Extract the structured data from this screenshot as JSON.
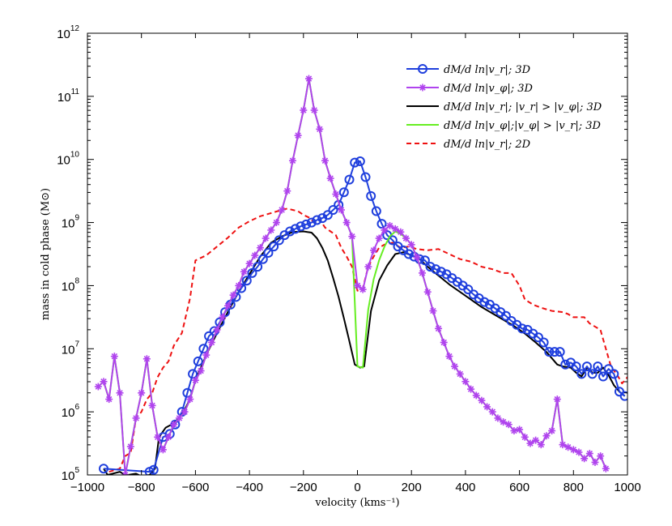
{
  "chart_data": {
    "type": "line",
    "xlabel": "velocity (kms⁻¹)",
    "ylabel": "mass in cold phase (M⊙)",
    "xlim": [
      -1000,
      1000
    ],
    "ylim_log10": [
      5,
      12
    ],
    "y_scale": "log",
    "x_ticks": [
      "−1000",
      "−800",
      "−600",
      "−400",
      "−200",
      "0",
      "200",
      "400",
      "600",
      "800",
      "1000"
    ],
    "y_ticks": [
      {
        "base": "10",
        "exp": "5"
      },
      {
        "base": "10",
        "exp": "6"
      },
      {
        "base": "10",
        "exp": "7"
      },
      {
        "base": "10",
        "exp": "8"
      },
      {
        "base": "10",
        "exp": "9"
      },
      {
        "base": "10",
        "exp": "10"
      },
      {
        "base": "10",
        "exp": "11"
      },
      {
        "base": "10",
        "exp": "12"
      }
    ],
    "legend_position": "top-right",
    "series": [
      {
        "name": "dM/d ln|v_r|; 3D",
        "color": "#1f3fdd",
        "line": "solid",
        "marker": "circle",
        "x": [
          -940,
          -770,
          -755,
          -720,
          -695,
          -675,
          -650,
          -630,
          -610,
          -590,
          -570,
          -550,
          -530,
          -510,
          -490,
          -470,
          -450,
          -430,
          -410,
          -390,
          -370,
          -350,
          -330,
          -310,
          -290,
          -270,
          -250,
          -230,
          -210,
          -190,
          -170,
          -150,
          -130,
          -110,
          -90,
          -70,
          -50,
          -30,
          -10,
          10,
          30,
          50,
          70,
          90,
          110,
          130,
          150,
          170,
          190,
          210,
          230,
          250,
          270,
          290,
          310,
          330,
          350,
          370,
          390,
          410,
          430,
          450,
          470,
          490,
          510,
          530,
          550,
          570,
          590,
          610,
          630,
          650,
          670,
          690,
          710,
          730,
          750,
          770,
          790,
          810,
          830,
          850,
          870,
          890,
          910,
          930,
          950,
          970,
          990
        ],
        "y_log10": [
          5.1,
          5.05,
          5.08,
          5.6,
          5.65,
          5.8,
          6.0,
          6.3,
          6.6,
          6.8,
          7.0,
          7.2,
          7.28,
          7.42,
          7.58,
          7.7,
          7.82,
          7.96,
          8.08,
          8.2,
          8.3,
          8.42,
          8.52,
          8.62,
          8.72,
          8.8,
          8.86,
          8.9,
          8.94,
          8.97,
          9.0,
          9.04,
          9.07,
          9.12,
          9.2,
          9.28,
          9.48,
          9.68,
          9.95,
          9.97,
          9.72,
          9.42,
          9.18,
          8.98,
          8.8,
          8.72,
          8.62,
          8.56,
          8.5,
          8.46,
          8.42,
          8.4,
          8.3,
          8.26,
          8.22,
          8.18,
          8.12,
          8.06,
          8.0,
          7.94,
          7.86,
          7.8,
          7.74,
          7.7,
          7.64,
          7.58,
          7.52,
          7.44,
          7.38,
          7.32,
          7.3,
          7.24,
          7.18,
          7.1,
          6.95,
          6.95,
          6.95,
          6.75,
          6.78,
          6.72,
          6.6,
          6.72,
          6.6,
          6.72,
          6.56,
          6.68,
          6.6,
          6.32,
          6.25
        ]
      },
      {
        "name": "dM/d ln|v_φ|; 3D",
        "color": "#b044ee",
        "line": "solid",
        "marker": "asterisk",
        "x": [
          -960,
          -940,
          -920,
          -900,
          -880,
          -860,
          -840,
          -820,
          -800,
          -780,
          -760,
          -740,
          -720,
          -700,
          -680,
          -660,
          -640,
          -620,
          -600,
          -580,
          -560,
          -540,
          -520,
          -500,
          -480,
          -460,
          -440,
          -420,
          -400,
          -380,
          -360,
          -340,
          -320,
          -300,
          -280,
          -260,
          -240,
          -220,
          -200,
          -180,
          -160,
          -140,
          -120,
          -100,
          -80,
          -60,
          -40,
          -20,
          0,
          20,
          40,
          60,
          80,
          100,
          120,
          140,
          160,
          180,
          200,
          220,
          240,
          260,
          280,
          300,
          320,
          340,
          360,
          380,
          400,
          420,
          440,
          460,
          480,
          500,
          520,
          540,
          560,
          580,
          600,
          620,
          640,
          660,
          680,
          700,
          720,
          740,
          760,
          780,
          800,
          820,
          840,
          860,
          880,
          900,
          920
        ],
        "y_log10": [
          6.4,
          6.48,
          6.2,
          6.88,
          6.3,
          5.0,
          5.45,
          5.9,
          6.3,
          6.84,
          6.1,
          5.6,
          5.4,
          5.6,
          5.8,
          5.9,
          6.0,
          6.2,
          6.5,
          6.65,
          6.9,
          7.1,
          7.3,
          7.5,
          7.68,
          7.85,
          8.0,
          8.22,
          8.35,
          8.48,
          8.6,
          8.75,
          8.88,
          9.0,
          9.2,
          9.5,
          9.98,
          10.38,
          10.78,
          11.28,
          10.78,
          10.48,
          9.98,
          9.7,
          9.45,
          9.2,
          9.0,
          8.78,
          8.0,
          7.94,
          8.3,
          8.56,
          8.75,
          8.88,
          8.95,
          8.9,
          8.85,
          8.75,
          8.65,
          8.45,
          8.2,
          7.9,
          7.6,
          7.32,
          7.1,
          6.88,
          6.72,
          6.6,
          6.48,
          6.36,
          6.26,
          6.18,
          6.08,
          6.0,
          5.9,
          5.84,
          5.8,
          5.7,
          5.72,
          5.6,
          5.5,
          5.55,
          5.48,
          5.62,
          5.7,
          6.2,
          5.48,
          5.44,
          5.4,
          5.36,
          5.26,
          5.34,
          5.2,
          5.3,
          5.1
        ]
      },
      {
        "name": "dM/d ln|v_r|; |v_r| > |v_φ|; 3D",
        "color": "#000000",
        "line": "solid",
        "marker": "none",
        "x": [
          -940,
          -925,
          -880,
          -860,
          -850,
          -820,
          -800,
          -770,
          -750,
          -735,
          -710,
          -680,
          -650,
          -620,
          -600,
          -560,
          -520,
          -480,
          -440,
          -400,
          -360,
          -320,
          -280,
          -240,
          -200,
          -170,
          -150,
          -130,
          -110,
          -90,
          -70,
          -50,
          -30,
          -10,
          10,
          25,
          50,
          80,
          110,
          140,
          170,
          200,
          230,
          260,
          300,
          340,
          380,
          420,
          460,
          500,
          540,
          580,
          620,
          660,
          700,
          740,
          760,
          790,
          810,
          830,
          850,
          870,
          890,
          910,
          930,
          950,
          970,
          990
        ],
        "y_log10": [
          5.1,
          5.0,
          5.05,
          5.0,
          5.0,
          5.02,
          4.98,
          5.0,
          5.1,
          5.6,
          5.75,
          5.82,
          5.95,
          6.2,
          6.5,
          6.9,
          7.25,
          7.58,
          7.9,
          8.18,
          8.46,
          8.68,
          8.78,
          8.85,
          8.86,
          8.84,
          8.75,
          8.6,
          8.4,
          8.12,
          7.82,
          7.48,
          7.12,
          6.75,
          6.7,
          6.72,
          7.6,
          8.08,
          8.32,
          8.5,
          8.53,
          8.48,
          8.42,
          8.3,
          8.16,
          8.02,
          7.9,
          7.78,
          7.66,
          7.56,
          7.46,
          7.36,
          7.24,
          7.1,
          6.95,
          6.75,
          6.72,
          6.7,
          6.62,
          6.56,
          6.7,
          6.62,
          6.62,
          6.7,
          6.58,
          6.42,
          6.32,
          6.25
        ]
      },
      {
        "name": "dM/d ln|v_φ|;|v_φ| > |v_r|; 3D",
        "color": "#66ee22",
        "line": "solid",
        "marker": "none",
        "x": [
          -960,
          -940,
          -920,
          -900,
          -880,
          -860,
          -840,
          -820,
          -800,
          -780,
          -760,
          -740,
          -720,
          -700,
          -680,
          -660,
          -640,
          -620,
          -600,
          -580,
          -560,
          -540,
          -520,
          -500,
          -480,
          -460,
          -440,
          -420,
          -400,
          -380,
          -360,
          -340,
          -320,
          -300,
          -280,
          -260,
          -240,
          -220,
          -200,
          -180,
          -160,
          -140,
          -120,
          -100,
          -80,
          -60,
          -40,
          -20,
          0,
          20,
          40,
          60,
          80,
          100,
          120,
          140,
          160,
          180,
          200,
          220,
          240,
          260,
          280,
          300,
          320,
          340,
          360,
          380,
          400,
          420,
          440,
          460,
          480,
          500,
          520,
          540,
          560,
          580,
          600,
          620,
          640,
          660,
          680,
          700,
          720,
          740,
          760,
          780,
          800,
          820,
          840,
          860,
          880,
          900,
          920
        ],
        "y_log10": [
          6.4,
          6.48,
          6.2,
          6.88,
          6.3,
          5.0,
          5.45,
          5.9,
          6.3,
          6.84,
          6.1,
          5.6,
          5.4,
          5.6,
          5.8,
          5.9,
          6.0,
          6.2,
          6.5,
          6.65,
          6.9,
          7.1,
          7.3,
          7.5,
          7.68,
          7.85,
          8.0,
          8.22,
          8.35,
          8.48,
          8.6,
          8.75,
          8.88,
          9.0,
          9.2,
          9.5,
          9.98,
          10.38,
          10.78,
          11.28,
          10.78,
          10.48,
          9.98,
          9.7,
          9.45,
          9.2,
          9.0,
          8.78,
          6.72,
          6.7,
          7.62,
          8.1,
          8.4,
          8.62,
          8.78,
          8.86,
          8.82,
          8.75,
          8.65,
          8.45,
          8.2,
          7.9,
          7.6,
          7.32,
          7.1,
          6.88,
          6.72,
          6.6,
          6.48,
          6.36,
          6.26,
          6.18,
          6.08,
          6.0,
          5.9,
          5.84,
          5.8,
          5.7,
          5.72,
          5.6,
          5.5,
          5.55,
          5.48,
          5.62,
          5.7,
          6.2,
          5.48,
          5.44,
          5.4,
          5.36,
          5.26,
          5.34,
          5.2,
          5.3,
          5.1
        ]
      },
      {
        "name": "dM/d ln|v_r|; 2D",
        "color": "#ee1111",
        "line": "dashed",
        "marker": "none",
        "x": [
          -920,
          -880,
          -860,
          -840,
          -820,
          -800,
          -780,
          -760,
          -740,
          -720,
          -700,
          -680,
          -650,
          -620,
          -600,
          -560,
          -520,
          -480,
          -440,
          -400,
          -360,
          -320,
          -280,
          -260,
          -240,
          -220,
          -200,
          -180,
          -160,
          -140,
          -120,
          -100,
          -80,
          -60,
          -40,
          -20,
          0,
          20,
          40,
          60,
          80,
          100,
          130,
          160,
          190,
          220,
          260,
          300,
          340,
          380,
          420,
          460,
          500,
          540,
          570,
          600,
          620,
          650,
          680,
          720,
          760,
          780,
          800,
          840,
          860,
          900,
          940,
          960,
          980,
          1000
        ],
        "y_log10": [
          5.05,
          5.1,
          5.3,
          5.35,
          5.9,
          6.0,
          6.2,
          6.3,
          6.55,
          6.7,
          6.8,
          7.05,
          7.25,
          7.8,
          8.4,
          8.48,
          8.62,
          8.76,
          8.92,
          9.02,
          9.1,
          9.15,
          9.2,
          9.22,
          9.2,
          9.18,
          9.12,
          9.08,
          9.0,
          9.05,
          8.92,
          8.86,
          8.8,
          8.6,
          8.46,
          8.3,
          7.92,
          7.96,
          8.3,
          8.46,
          8.6,
          8.65,
          8.68,
          8.6,
          8.62,
          8.58,
          8.56,
          8.58,
          8.5,
          8.42,
          8.38,
          8.3,
          8.26,
          8.2,
          8.2,
          8.0,
          7.78,
          7.7,
          7.65,
          7.6,
          7.58,
          7.55,
          7.5,
          7.5,
          7.4,
          7.3,
          6.7,
          6.6,
          6.45,
          6.55
        ]
      }
    ]
  }
}
